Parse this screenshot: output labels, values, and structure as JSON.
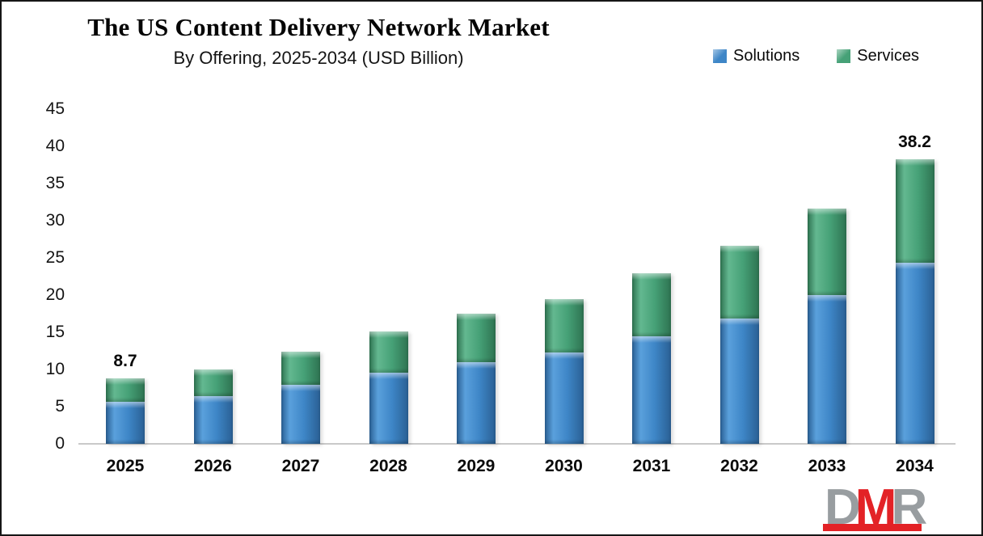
{
  "header": {
    "title": "The US Content Delivery Network Market",
    "subtitle": "By Offering, 2025-2034 (USD Billion)"
  },
  "legend": {
    "items": [
      {
        "label": "Solutions",
        "color": "#3e86c7"
      },
      {
        "label": "Services",
        "color": "#46a177"
      }
    ]
  },
  "colors": {
    "solutions": "#3e86c7",
    "services": "#46a177",
    "axis_line": "#c9c9c9",
    "text": "#0a0a0a",
    "logo_gray": "#989da0",
    "logo_red": "#e32226"
  },
  "chart_data": {
    "type": "bar",
    "stacked": true,
    "title": "The US Content Delivery Network Market",
    "subtitle": "By Offering, 2025-2034 (USD Billion)",
    "categories": [
      "2025",
      "2026",
      "2027",
      "2028",
      "2029",
      "2030",
      "2031",
      "2032",
      "2033",
      "2034"
    ],
    "series": [
      {
        "name": "Solutions",
        "color": "#3e86c7",
        "values": [
          5.6,
          6.4,
          7.9,
          9.6,
          11.0,
          12.3,
          14.5,
          16.9,
          20.0,
          24.3
        ]
      },
      {
        "name": "Services",
        "color": "#46a177",
        "values": [
          3.1,
          3.6,
          4.5,
          5.5,
          6.5,
          7.2,
          8.5,
          9.8,
          11.6,
          13.9
        ]
      }
    ],
    "totals": [
      8.7,
      10.0,
      12.4,
      15.1,
      17.5,
      19.5,
      23.0,
      26.7,
      31.6,
      38.2
    ],
    "total_labels": [
      {
        "category": "2025",
        "text": "8.7"
      },
      {
        "category": "2034",
        "text": "38.2"
      }
    ],
    "xlabel": "",
    "ylabel": "",
    "ylim": [
      0,
      45
    ],
    "ytick_step": 5,
    "yticks": [
      45,
      40,
      35,
      30,
      25,
      20,
      15,
      10,
      5,
      0
    ],
    "grid": false,
    "legend_position": "top-right"
  },
  "logo": {
    "letters": [
      {
        "text": "D",
        "color": "#989da0"
      },
      {
        "text": "M",
        "color": "#e32226"
      },
      {
        "text": "R",
        "color": "#989da0"
      }
    ]
  }
}
